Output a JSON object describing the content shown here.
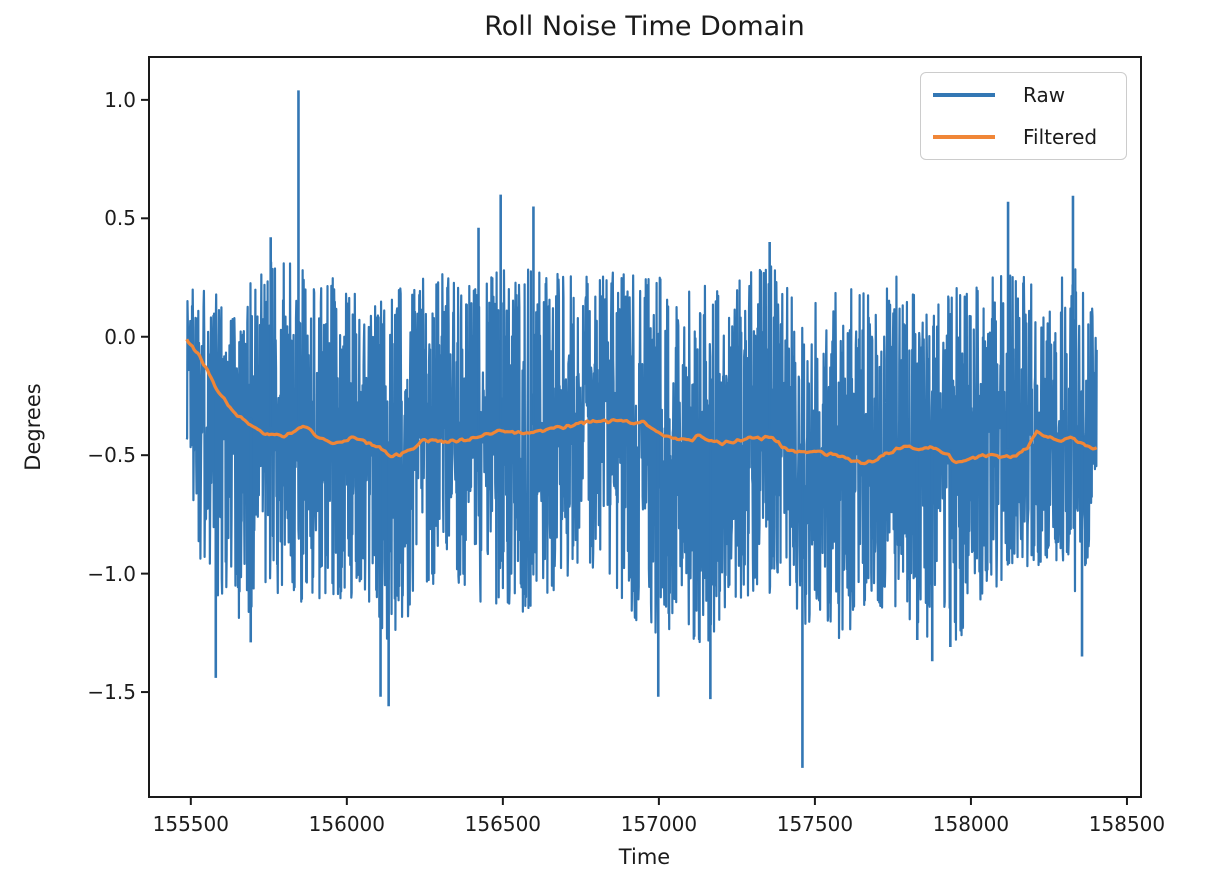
{
  "figure": {
    "background": "#ffffff"
  },
  "chart_data": {
    "type": "line",
    "title": "Roll Noise Time Domain",
    "xlabel": "Time",
    "ylabel": "Degrees",
    "xlim": [
      155366,
      158545
    ],
    "ylim": [
      -1.943,
      1.181
    ],
    "xticks": [
      155500,
      156000,
      156500,
      157000,
      157500,
      158000,
      158500
    ],
    "xtick_labels": [
      "155500",
      "156000",
      "156500",
      "157000",
      "157500",
      "158000",
      "158500"
    ],
    "yticks": [
      1.0,
      0.5,
      0.0,
      -0.5,
      -1.0,
      -1.5
    ],
    "ytick_labels": [
      "1.0",
      "0.5",
      "0.0",
      "−0.5",
      "−1.0",
      "−1.5"
    ],
    "grid": false,
    "legend_position": "upper right",
    "axis_color": "#1a1a1a",
    "legend": [
      {
        "label": "Raw",
        "color": "#3377b4"
      },
      {
        "label": "Filtered",
        "color": "#f08637"
      }
    ],
    "series": [
      {
        "name": "Raw",
        "type": "noise",
        "color": "#3377b4",
        "t_start": 155487,
        "t_end": 158403,
        "samples": 2600,
        "seed": 1337,
        "shape": 1.15,
        "center_offset": 0.03,
        "stroke_width": 2.2,
        "spike_width": 2.6,
        "envelope": [
          [
            155487,
            -0.75,
            0.25
          ],
          [
            155550,
            -1.05,
            0.22
          ],
          [
            155650,
            -1.25,
            0.18
          ],
          [
            155750,
            -1.1,
            0.33
          ],
          [
            155850,
            -1.15,
            0.3
          ],
          [
            155950,
            -1.1,
            0.28
          ],
          [
            156050,
            -1.2,
            0.15
          ],
          [
            156150,
            -1.3,
            0.22
          ],
          [
            156250,
            -1.05,
            0.35
          ],
          [
            156350,
            -1.1,
            0.22
          ],
          [
            156450,
            -1.15,
            0.32
          ],
          [
            156550,
            -1.2,
            0.3
          ],
          [
            156650,
            -1.1,
            0.28
          ],
          [
            156750,
            -1.0,
            0.25
          ],
          [
            156850,
            -1.05,
            0.28
          ],
          [
            156950,
            -1.25,
            0.3
          ],
          [
            157050,
            -1.25,
            0.25
          ],
          [
            157150,
            -1.3,
            0.22
          ],
          [
            157250,
            -1.1,
            0.28
          ],
          [
            157350,
            -1.15,
            0.32
          ],
          [
            157450,
            -1.2,
            0.2
          ],
          [
            157550,
            -1.3,
            0.18
          ],
          [
            157650,
            -1.2,
            0.25
          ],
          [
            157750,
            -1.15,
            0.28
          ],
          [
            157850,
            -1.3,
            0.18
          ],
          [
            157950,
            -1.3,
            0.22
          ],
          [
            158050,
            -1.1,
            0.25
          ],
          [
            158150,
            -1.0,
            0.28
          ],
          [
            158250,
            -0.95,
            0.25
          ],
          [
            158330,
            -1.1,
            0.3
          ],
          [
            158403,
            -1.0,
            0.1
          ]
        ],
        "spikes": [
          [
            155580,
            -1.44
          ],
          [
            155692,
            -1.29
          ],
          [
            155756,
            0.42
          ],
          [
            155845,
            1.04
          ],
          [
            156108,
            -1.52
          ],
          [
            156134,
            -1.56
          ],
          [
            156422,
            0.46
          ],
          [
            156493,
            0.6
          ],
          [
            156598,
            0.55
          ],
          [
            156998,
            -1.52
          ],
          [
            157165,
            -1.53
          ],
          [
            157355,
            0.4
          ],
          [
            157460,
            -1.82
          ],
          [
            157828,
            -1.28
          ],
          [
            157876,
            -1.37
          ],
          [
            157934,
            -1.31
          ],
          [
            158119,
            0.57
          ],
          [
            158327,
            0.595
          ],
          [
            158356,
            -1.35
          ]
        ]
      },
      {
        "name": "Filtered",
        "type": "line",
        "color": "#f08637",
        "stroke_width": 3.2,
        "jitter": 0.009,
        "jitter_step": 6,
        "jitter_seed": 77,
        "points": [
          [
            155487,
            -0.01
          ],
          [
            155510,
            -0.05
          ],
          [
            155540,
            -0.11
          ],
          [
            155575,
            -0.2
          ],
          [
            155610,
            -0.27
          ],
          [
            155650,
            -0.33
          ],
          [
            155690,
            -0.37
          ],
          [
            155730,
            -0.405
          ],
          [
            155775,
            -0.415
          ],
          [
            155800,
            -0.42
          ],
          [
            155825,
            -0.405
          ],
          [
            155860,
            -0.375
          ],
          [
            155880,
            -0.39
          ],
          [
            155900,
            -0.42
          ],
          [
            155930,
            -0.435
          ],
          [
            155960,
            -0.445
          ],
          [
            155990,
            -0.44
          ],
          [
            156020,
            -0.425
          ],
          [
            156050,
            -0.44
          ],
          [
            156080,
            -0.45
          ],
          [
            156110,
            -0.47
          ],
          [
            156140,
            -0.5
          ],
          [
            156170,
            -0.5
          ],
          [
            156200,
            -0.48
          ],
          [
            156240,
            -0.44
          ],
          [
            156280,
            -0.435
          ],
          [
            156320,
            -0.445
          ],
          [
            156360,
            -0.44
          ],
          [
            156400,
            -0.43
          ],
          [
            156440,
            -0.42
          ],
          [
            156480,
            -0.4
          ],
          [
            156530,
            -0.4
          ],
          [
            156570,
            -0.41
          ],
          [
            156610,
            -0.4
          ],
          [
            156650,
            -0.385
          ],
          [
            156700,
            -0.38
          ],
          [
            156750,
            -0.36
          ],
          [
            156800,
            -0.36
          ],
          [
            156850,
            -0.355
          ],
          [
            156900,
            -0.36
          ],
          [
            156950,
            -0.36
          ],
          [
            156990,
            -0.4
          ],
          [
            157030,
            -0.42
          ],
          [
            157070,
            -0.435
          ],
          [
            157100,
            -0.44
          ],
          [
            157130,
            -0.42
          ],
          [
            157170,
            -0.44
          ],
          [
            157210,
            -0.45
          ],
          [
            157250,
            -0.44
          ],
          [
            157290,
            -0.425
          ],
          [
            157330,
            -0.43
          ],
          [
            157360,
            -0.42
          ],
          [
            157390,
            -0.46
          ],
          [
            157420,
            -0.48
          ],
          [
            157460,
            -0.49
          ],
          [
            157520,
            -0.49
          ],
          [
            157560,
            -0.5
          ],
          [
            157610,
            -0.52
          ],
          [
            157650,
            -0.53
          ],
          [
            157690,
            -0.52
          ],
          [
            157730,
            -0.49
          ],
          [
            157770,
            -0.475
          ],
          [
            157800,
            -0.46
          ],
          [
            157830,
            -0.48
          ],
          [
            157860,
            -0.465
          ],
          [
            157900,
            -0.475
          ],
          [
            157930,
            -0.5
          ],
          [
            157950,
            -0.535
          ],
          [
            157990,
            -0.52
          ],
          [
            158020,
            -0.51
          ],
          [
            158060,
            -0.5
          ],
          [
            158100,
            -0.505
          ],
          [
            158140,
            -0.5
          ],
          [
            158180,
            -0.47
          ],
          [
            158210,
            -0.4
          ],
          [
            158230,
            -0.42
          ],
          [
            158260,
            -0.43
          ],
          [
            158290,
            -0.44
          ],
          [
            158320,
            -0.43
          ],
          [
            158350,
            -0.445
          ],
          [
            158375,
            -0.465
          ],
          [
            158403,
            -0.475
          ]
        ]
      }
    ]
  }
}
